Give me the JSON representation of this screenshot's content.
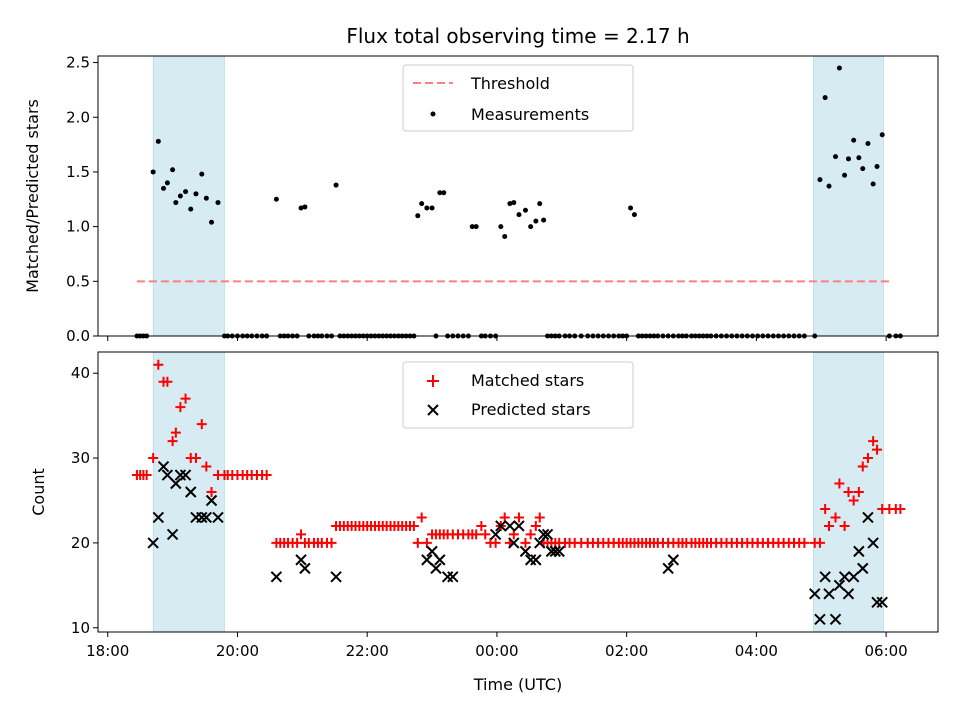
{
  "chart_data": [
    {
      "type": "scatter",
      "title": "Flux total observing time = 2.17 h",
      "xlabel": "",
      "ylabel": "Matched/Predicted stars",
      "ylim": [
        0,
        2.56
      ],
      "yticks": [
        0.0,
        0.5,
        1.0,
        1.5,
        2.0,
        2.5
      ],
      "ytick_labels": [
        "0.0",
        "0.5",
        "1.0",
        "1.5",
        "2.0",
        "2.5"
      ],
      "x_unit": "hours since 18:00 UTC",
      "xlim": [
        -0.15,
        12.8
      ],
      "shaded_intervals": [
        [
          0.7,
          1.8
        ],
        [
          10.88,
          11.96
        ]
      ],
      "legend": {
        "placement": "top-center",
        "entries": [
          "Threshold",
          "Measurements"
        ]
      },
      "series": [
        {
          "name": "Threshold",
          "style": "dashed-line",
          "color": "#ff7f7f",
          "x": [
            0.45,
            12.1
          ],
          "y": [
            0.5,
            0.5
          ]
        },
        {
          "name": "Measurements",
          "style": "dot",
          "color": "#000000",
          "x": [
            0.45,
            0.5,
            0.55,
            0.6,
            0.7,
            0.78,
            0.86,
            0.92,
            1.0,
            1.05,
            1.12,
            1.2,
            1.28,
            1.36,
            1.45,
            1.52,
            1.6,
            1.7,
            1.8,
            1.85,
            1.92,
            2.0,
            2.08,
            2.15,
            2.22,
            2.3,
            2.38,
            2.45,
            2.6,
            2.66,
            2.72,
            2.78,
            2.85,
            2.92,
            2.98,
            3.04,
            3.1,
            3.18,
            3.24,
            3.3,
            3.38,
            3.45,
            3.52,
            3.58,
            3.64,
            3.7,
            3.76,
            3.82,
            3.88,
            3.94,
            4.0,
            4.06,
            4.12,
            4.18,
            4.24,
            4.3,
            4.36,
            4.42,
            4.48,
            4.54,
            4.6,
            4.66,
            4.72,
            4.78,
            4.84,
            4.92,
            5.0,
            5.06,
            5.12,
            5.18,
            5.24,
            5.32,
            5.4,
            5.48,
            5.56,
            5.62,
            5.68,
            5.76,
            5.82,
            5.9,
            5.98,
            6.06,
            6.12,
            6.2,
            6.26,
            6.34,
            6.44,
            6.52,
            6.6,
            6.66,
            6.72,
            6.78,
            6.84,
            6.9,
            6.96,
            7.05,
            7.12,
            7.2,
            7.3,
            7.4,
            7.48,
            7.56,
            7.64,
            7.72,
            7.8,
            7.88,
            7.94,
            8.0,
            8.06,
            8.12,
            8.18,
            8.24,
            8.3,
            8.36,
            8.42,
            8.48,
            8.56,
            8.64,
            8.72,
            8.8,
            8.86,
            8.92,
            9.0,
            9.06,
            9.12,
            9.18,
            9.24,
            9.3,
            9.38,
            9.46,
            9.54,
            9.62,
            9.7,
            9.78,
            9.86,
            9.94,
            10.02,
            10.1,
            10.18,
            10.26,
            10.34,
            10.42,
            10.5,
            10.58,
            10.66,
            10.74,
            10.9,
            10.98,
            11.06,
            11.12,
            11.22,
            11.28,
            11.36,
            11.42,
            11.5,
            11.58,
            11.64,
            11.72,
            11.8,
            11.86,
            11.94,
            12.05,
            12.15,
            12.22
          ],
          "y": [
            0,
            0,
            0,
            0,
            1.5,
            1.78,
            1.35,
            1.4,
            1.52,
            1.22,
            1.28,
            1.32,
            1.16,
            1.3,
            1.48,
            1.26,
            1.04,
            1.22,
            0,
            0,
            0,
            0,
            0,
            0,
            0,
            0,
            0,
            0,
            1.25,
            0,
            0,
            0,
            0,
            0,
            1.17,
            1.18,
            0,
            0,
            0,
            0,
            0,
            0,
            1.38,
            0,
            0,
            0,
            0,
            0,
            0,
            0,
            0,
            0,
            0,
            0,
            0,
            0,
            0,
            0,
            0,
            0,
            0,
            0,
            0,
            1.1,
            1.21,
            1.17,
            1.17,
            0,
            1.31,
            1.31,
            0,
            0,
            0,
            0,
            0,
            1.0,
            1.0,
            0,
            0,
            0,
            0,
            1.0,
            0.91,
            1.21,
            1.22,
            1.11,
            1.15,
            1.0,
            1.05,
            1.21,
            1.06,
            0,
            0,
            0,
            0,
            0,
            0,
            0,
            0,
            0,
            0,
            0,
            0,
            0,
            0,
            0,
            0,
            0,
            1.17,
            1.11,
            0,
            0,
            0,
            0,
            0,
            0,
            0,
            0,
            0,
            0,
            0,
            0,
            0,
            0,
            0,
            0,
            0,
            0,
            0,
            0,
            0,
            0,
            0,
            0,
            0,
            0,
            0,
            0,
            0,
            0,
            0,
            0,
            0,
            0,
            0,
            0,
            0,
            1.43,
            2.18,
            1.37,
            1.64,
            2.45,
            1.47,
            1.62,
            1.79,
            1.63,
            1.53,
            1.76,
            1.39,
            1.55,
            1.84,
            0,
            0,
            0
          ]
        }
      ]
    },
    {
      "type": "scatter",
      "title": "",
      "xlabel": "Time (UTC)",
      "ylabel": "Count",
      "ylim": [
        9.5,
        42.5
      ],
      "yticks": [
        10,
        20,
        30,
        40
      ],
      "ytick_labels": [
        "10",
        "20",
        "30",
        "40"
      ],
      "xticks": [
        0,
        2,
        4,
        6,
        8,
        10,
        12
      ],
      "xtick_labels": [
        "18:00",
        "20:00",
        "22:00",
        "00:00",
        "02:00",
        "04:00",
        "06:00"
      ],
      "x_unit": "hours since 18:00 UTC",
      "xlim": [
        -0.15,
        12.8
      ],
      "shaded_intervals": [
        [
          0.7,
          1.8
        ],
        [
          10.88,
          11.96
        ]
      ],
      "legend": {
        "placement": "top-center",
        "entries": [
          "Matched stars",
          "Predicted stars"
        ]
      },
      "series": [
        {
          "name": "Matched stars",
          "style": "plus",
          "color": "#ff0000",
          "x": [
            0.45,
            0.5,
            0.55,
            0.6,
            0.7,
            0.78,
            0.86,
            0.92,
            1.0,
            1.05,
            1.12,
            1.2,
            1.28,
            1.36,
            1.45,
            1.52,
            1.6,
            1.7,
            1.8,
            1.85,
            1.92,
            2.0,
            2.08,
            2.15,
            2.22,
            2.3,
            2.38,
            2.45,
            2.6,
            2.66,
            2.72,
            2.78,
            2.85,
            2.92,
            2.98,
            3.04,
            3.1,
            3.18,
            3.24,
            3.3,
            3.38,
            3.45,
            3.52,
            3.58,
            3.64,
            3.7,
            3.76,
            3.82,
            3.88,
            3.94,
            4.0,
            4.06,
            4.12,
            4.18,
            4.24,
            4.3,
            4.36,
            4.42,
            4.48,
            4.54,
            4.6,
            4.66,
            4.72,
            4.78,
            4.84,
            4.92,
            5.0,
            5.06,
            5.12,
            5.18,
            5.24,
            5.32,
            5.4,
            5.48,
            5.56,
            5.62,
            5.68,
            5.76,
            5.82,
            5.9,
            5.98,
            6.06,
            6.12,
            6.2,
            6.26,
            6.34,
            6.44,
            6.52,
            6.6,
            6.66,
            6.72,
            6.78,
            6.84,
            6.9,
            6.96,
            7.05,
            7.12,
            7.2,
            7.3,
            7.4,
            7.48,
            7.56,
            7.64,
            7.72,
            7.8,
            7.88,
            7.94,
            8.0,
            8.06,
            8.12,
            8.18,
            8.24,
            8.3,
            8.36,
            8.42,
            8.48,
            8.56,
            8.64,
            8.72,
            8.8,
            8.86,
            8.92,
            9.0,
            9.06,
            9.12,
            9.18,
            9.24,
            9.3,
            9.38,
            9.46,
            9.54,
            9.62,
            9.7,
            9.78,
            9.86,
            9.94,
            10.02,
            10.1,
            10.18,
            10.26,
            10.34,
            10.42,
            10.5,
            10.58,
            10.66,
            10.74,
            10.9,
            10.98,
            11.06,
            11.12,
            11.22,
            11.28,
            11.36,
            11.42,
            11.5,
            11.58,
            11.64,
            11.72,
            11.8,
            11.86,
            11.94,
            12.05,
            12.15,
            12.22
          ],
          "y": [
            28,
            28,
            28,
            28,
            30,
            41,
            39,
            39,
            32,
            33,
            36,
            37,
            30,
            30,
            34,
            29,
            26,
            28,
            28,
            28,
            28,
            28,
            28,
            28,
            28,
            28,
            28,
            28,
            20,
            20,
            20,
            20,
            20,
            20,
            21,
            20,
            20,
            20,
            20,
            20,
            20,
            20,
            22,
            22,
            22,
            22,
            22,
            22,
            22,
            22,
            22,
            22,
            22,
            22,
            22,
            22,
            22,
            22,
            22,
            22,
            22,
            22,
            22,
            20,
            23,
            20,
            21,
            21,
            21,
            21,
            21,
            21,
            21,
            21,
            21,
            21,
            21,
            22,
            21,
            20,
            20,
            22,
            23,
            20,
            21,
            23,
            20,
            21,
            22,
            23,
            20,
            20,
            20,
            20,
            20,
            20,
            20,
            20,
            20,
            20,
            20,
            20,
            20,
            20,
            20,
            20,
            20,
            20,
            20,
            20,
            20,
            20,
            20,
            20,
            20,
            20,
            20,
            20,
            20,
            20,
            20,
            20,
            20,
            20,
            20,
            20,
            20,
            20,
            20,
            20,
            20,
            20,
            20,
            20,
            20,
            20,
            20,
            20,
            20,
            20,
            20,
            20,
            20,
            20,
            20,
            20,
            20,
            20,
            24,
            22,
            23,
            27,
            22,
            26,
            25,
            26,
            29,
            30,
            32,
            31,
            24,
            24,
            24,
            24
          ]
        },
        {
          "name": "Predicted stars",
          "style": "x",
          "color": "#000000",
          "x": [
            0.7,
            0.78,
            0.86,
            0.92,
            1.0,
            1.05,
            1.12,
            1.2,
            1.28,
            1.36,
            1.45,
            1.52,
            1.6,
            1.7,
            2.6,
            2.98,
            3.04,
            3.52,
            4.92,
            5.0,
            5.06,
            5.12,
            5.24,
            5.32,
            5.98,
            6.06,
            6.2,
            6.26,
            6.34,
            6.44,
            6.52,
            6.6,
            6.66,
            6.72,
            6.78,
            6.84,
            6.9,
            6.96,
            8.64,
            8.72,
            10.9,
            10.98,
            11.06,
            11.12,
            11.22,
            11.28,
            11.36,
            11.42,
            11.5,
            11.58,
            11.64,
            11.72,
            11.8,
            11.86,
            11.94
          ],
          "y": [
            20,
            23,
            29,
            28,
            21,
            27,
            28,
            28,
            26,
            23,
            23,
            23,
            25,
            23,
            16,
            18,
            17,
            16,
            18,
            19,
            17,
            18,
            16,
            16,
            21,
            22,
            22,
            20,
            22,
            19,
            18,
            18,
            20,
            21,
            21,
            19,
            19,
            19,
            17,
            18,
            14,
            11,
            16,
            14,
            11,
            15,
            16,
            14,
            16,
            19,
            17,
            23,
            20,
            13,
            13
          ]
        }
      ]
    }
  ]
}
